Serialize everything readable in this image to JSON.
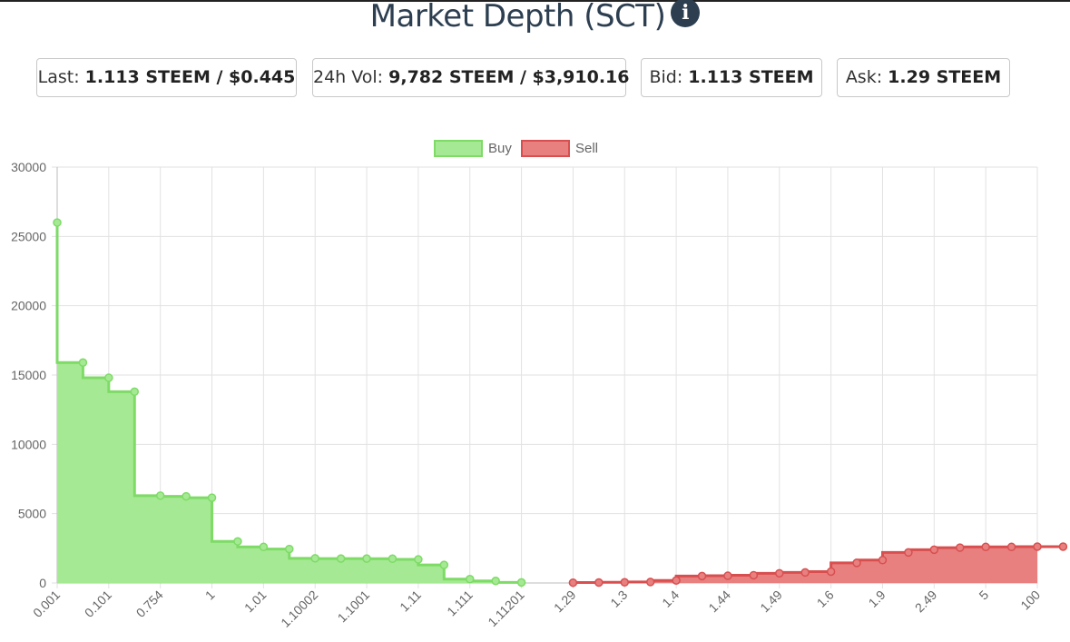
{
  "header": {
    "title": "Market Depth (SCT)",
    "info_icon": "info-circle-icon",
    "info_glyph": "i"
  },
  "stats": {
    "last": {
      "label": "Last: ",
      "value": "1.113 STEEM / $0.445"
    },
    "vol": {
      "label": "24h Vol: ",
      "value": "9,782 STEEM / $3,910.16"
    },
    "bid": {
      "label": "Bid: ",
      "value": "1.113 STEEM"
    },
    "ask": {
      "label": "Ask: ",
      "value": "1.29 STEEM"
    }
  },
  "colors": {
    "buy_fill": "#a6e994",
    "buy_line": "#7ddb66",
    "sell_fill": "#e88080",
    "sell_line": "#d94f4f",
    "grid": "#e2e2e2"
  },
  "chart_data": {
    "type": "area",
    "x_labels": [
      "0.001",
      "0.101",
      "0.754",
      "1",
      "1.01",
      "1.10002",
      "1.1001",
      "1.11",
      "1.111",
      "1.11201",
      "1.29",
      "1.3",
      "1.4",
      "1.44",
      "1.49",
      "1.6",
      "1.9",
      "2.49",
      "5",
      "100"
    ],
    "ylim": [
      0,
      30000
    ],
    "yticks": [
      0,
      5000,
      10000,
      15000,
      20000,
      25000,
      30000
    ],
    "grid": true,
    "legend_position": "top-center",
    "series": [
      {
        "name": "Buy",
        "x": [
          0,
          0.5,
          1,
          1.5,
          2,
          2.5,
          3,
          3.5,
          4,
          4.5,
          5,
          5.5,
          6,
          6.5,
          7,
          7.5,
          8,
          8.5,
          9,
          9.5
        ],
        "values": [
          26000,
          15900,
          14800,
          13800,
          6300,
          6250,
          6150,
          3000,
          2600,
          2450,
          1780,
          1760,
          1760,
          1750,
          1700,
          1300,
          280,
          150,
          40,
          null
        ]
      },
      {
        "name": "Sell",
        "x": [
          10,
          10.5,
          11,
          11.5,
          12,
          12.5,
          13,
          13.5,
          14,
          14.5,
          15,
          15.5,
          16,
          16.5,
          17,
          17.5,
          18,
          18.5,
          19,
          19.5
        ],
        "values": [
          20,
          30,
          50,
          70,
          180,
          500,
          520,
          560,
          700,
          760,
          820,
          1450,
          1650,
          2200,
          2400,
          2550,
          2600,
          2600,
          2620,
          2620
        ]
      }
    ]
  }
}
